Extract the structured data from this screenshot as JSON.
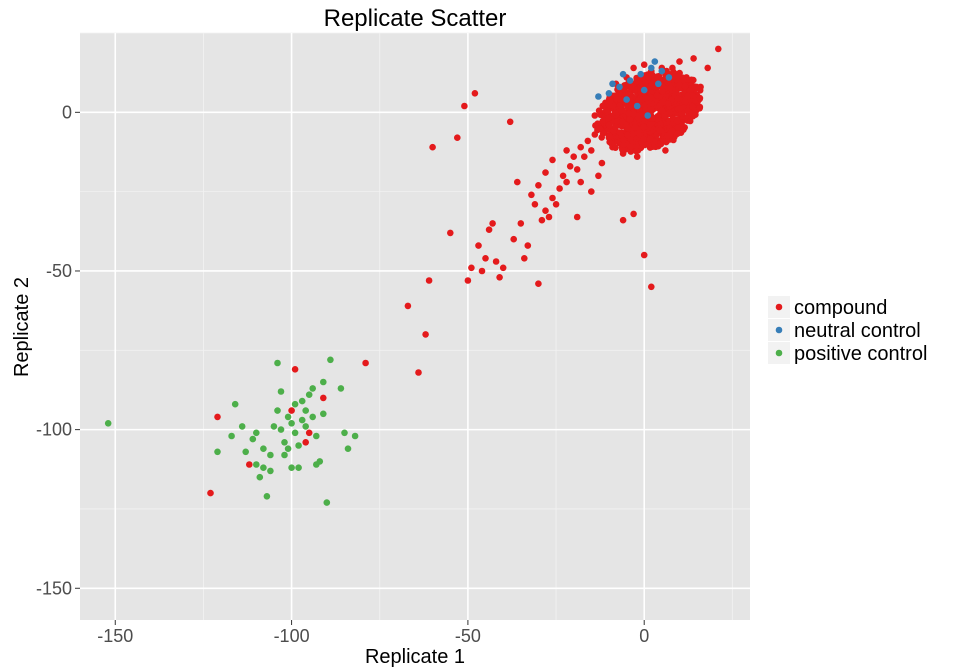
{
  "chart_data": {
    "type": "scatter",
    "title": "Replicate Scatter",
    "xlabel": "Replicate 1",
    "ylabel": "Replicate 2",
    "xlim": [
      -160,
      30
    ],
    "ylim": [
      -160,
      25
    ],
    "x_ticks": [
      -150,
      -100,
      -50,
      0
    ],
    "y_ticks": [
      -150,
      -100,
      -50,
      0
    ],
    "x_tick_labels": [
      "-150",
      "-100",
      "-50",
      "0"
    ],
    "y_tick_labels": [
      "-150",
      "-100",
      "-50",
      "0"
    ],
    "grid": true,
    "background_color": "#e5e5e5",
    "legend_position": "right",
    "series": [
      {
        "name": "compound",
        "color": "#e41a1c",
        "points": [
          [
            -123,
            -120
          ],
          [
            -121,
            -96
          ],
          [
            -112,
            -111
          ],
          [
            -100,
            -94
          ],
          [
            -99,
            -81
          ],
          [
            -96,
            -104
          ],
          [
            -95,
            -101
          ],
          [
            -91,
            -90
          ],
          [
            -79,
            -79
          ],
          [
            -67,
            -61
          ],
          [
            -64,
            -82
          ],
          [
            -62,
            -70
          ],
          [
            -61,
            -53
          ],
          [
            -60,
            -11
          ],
          [
            -55,
            -38
          ],
          [
            -53,
            -8
          ],
          [
            -51,
            2
          ],
          [
            -48,
            6
          ],
          [
            -50,
            -53
          ],
          [
            -49,
            -49
          ],
          [
            -47,
            -42
          ],
          [
            -46,
            -50
          ],
          [
            -45,
            -46
          ],
          [
            -44,
            -37
          ],
          [
            -43,
            -35
          ],
          [
            -41,
            -52
          ],
          [
            -40,
            -49
          ],
          [
            -38,
            -3
          ],
          [
            -37,
            -40
          ],
          [
            -35,
            -35
          ],
          [
            -34,
            -46
          ],
          [
            -33,
            -42
          ],
          [
            -32,
            -26
          ],
          [
            -31,
            -29
          ],
          [
            -30,
            -54
          ],
          [
            -29,
            -34
          ],
          [
            -28,
            -31
          ],
          [
            -27,
            -33
          ],
          [
            -26,
            -27
          ],
          [
            -25,
            -29
          ],
          [
            -24,
            -24
          ],
          [
            -23,
            -20
          ],
          [
            -22,
            -22
          ],
          [
            -21,
            -17
          ],
          [
            -20,
            -14
          ],
          [
            -19,
            -18
          ],
          [
            -18,
            -11
          ],
          [
            -17,
            -14
          ],
          [
            -16,
            -9
          ],
          [
            -15,
            -12
          ],
          [
            -14,
            -7
          ],
          [
            -13,
            -20
          ],
          [
            -12,
            -5
          ],
          [
            -11,
            -3
          ],
          [
            -10,
            -8
          ],
          [
            -9,
            2
          ],
          [
            -8,
            -6
          ],
          [
            -7,
            4
          ],
          [
            -6,
            -34
          ],
          [
            -5,
            -2
          ],
          [
            -4,
            5
          ],
          [
            -3,
            -32
          ],
          [
            -2,
            -3
          ],
          [
            -1,
            8
          ],
          [
            0,
            -45
          ],
          [
            1,
            3
          ],
          [
            2,
            -55
          ],
          [
            3,
            10
          ],
          [
            4,
            -4
          ],
          [
            5,
            6
          ],
          [
            6,
            12
          ],
          [
            7,
            0
          ],
          [
            8,
            14
          ],
          [
            9,
            7
          ],
          [
            10,
            16
          ],
          [
            11,
            9
          ],
          [
            12,
            11
          ],
          [
            14,
            17
          ],
          [
            16,
            8
          ],
          [
            18,
            14
          ],
          [
            21,
            20
          ],
          [
            -19,
            -33
          ],
          [
            -22,
            -12
          ],
          [
            -26,
            -15
          ],
          [
            -28,
            -19
          ],
          [
            -30,
            -23
          ],
          [
            -36,
            -22
          ],
          [
            -42,
            -47
          ],
          [
            -18,
            -22
          ],
          [
            -15,
            -25
          ],
          [
            -12,
            -16
          ],
          [
            -9,
            -11
          ],
          [
            -6,
            -13
          ],
          [
            -4,
            -9
          ],
          [
            -2,
            -14
          ],
          [
            1,
            -10
          ],
          [
            3,
            -7
          ],
          [
            6,
            -12
          ],
          [
            8,
            -4
          ],
          [
            10,
            -2
          ],
          [
            -14,
            -1
          ],
          [
            -11,
            3
          ],
          [
            -8,
            9
          ],
          [
            -5,
            11
          ],
          [
            -3,
            14
          ],
          [
            0,
            15
          ],
          [
            2,
            13
          ],
          [
            5,
            14
          ],
          [
            7,
            5
          ],
          [
            9,
            -6
          ]
        ]
      },
      {
        "name": "neutral control",
        "color": "#377eb8",
        "points": [
          [
            -13,
            5
          ],
          [
            -10,
            6
          ],
          [
            -7,
            8
          ],
          [
            -4,
            10
          ],
          [
            -1,
            12
          ],
          [
            2,
            14
          ],
          [
            3,
            16
          ],
          [
            5,
            13
          ],
          [
            -9,
            9
          ],
          [
            -5,
            4
          ],
          [
            0,
            7
          ],
          [
            4,
            9
          ],
          [
            7,
            11
          ],
          [
            -2,
            2
          ],
          [
            1,
            -1
          ],
          [
            -6,
            12
          ]
        ]
      },
      {
        "name": "positive control",
        "color": "#4daf4a",
        "points": [
          [
            -152,
            -98
          ],
          [
            -121,
            -107
          ],
          [
            -117,
            -102
          ],
          [
            -116,
            -92
          ],
          [
            -114,
            -99
          ],
          [
            -113,
            -107
          ],
          [
            -111,
            -103
          ],
          [
            -110,
            -111
          ],
          [
            -109,
            -115
          ],
          [
            -108,
            -106
          ],
          [
            -107,
            -121
          ],
          [
            -106,
            -113
          ],
          [
            -105,
            -99
          ],
          [
            -104,
            -94
          ],
          [
            -103,
            -88
          ],
          [
            -102,
            -108
          ],
          [
            -101,
            -96
          ],
          [
            -100,
            -112
          ],
          [
            -99,
            -101
          ],
          [
            -98,
            -105
          ],
          [
            -97,
            -91
          ],
          [
            -96,
            -99
          ],
          [
            -95,
            -89
          ],
          [
            -94,
            -96
          ],
          [
            -93,
            -102
          ],
          [
            -92,
            -110
          ],
          [
            -91,
            -95
          ],
          [
            -90,
            -123
          ],
          [
            -89,
            -78
          ],
          [
            -86,
            -87
          ],
          [
            -85,
            -101
          ],
          [
            -84,
            -106
          ],
          [
            -82,
            -102
          ],
          [
            -104,
            -79
          ],
          [
            -102,
            -104
          ],
          [
            -100,
            -98
          ],
          [
            -98,
            -112
          ],
          [
            -96,
            -94
          ],
          [
            -94,
            -87
          ],
          [
            -103,
            -100
          ],
          [
            -106,
            -108
          ],
          [
            -108,
            -112
          ],
          [
            -101,
            -106
          ],
          [
            -99,
            -92
          ],
          [
            -97,
            -97
          ],
          [
            -93,
            -111
          ],
          [
            -91,
            -85
          ],
          [
            -110,
            -101
          ]
        ]
      }
    ]
  }
}
